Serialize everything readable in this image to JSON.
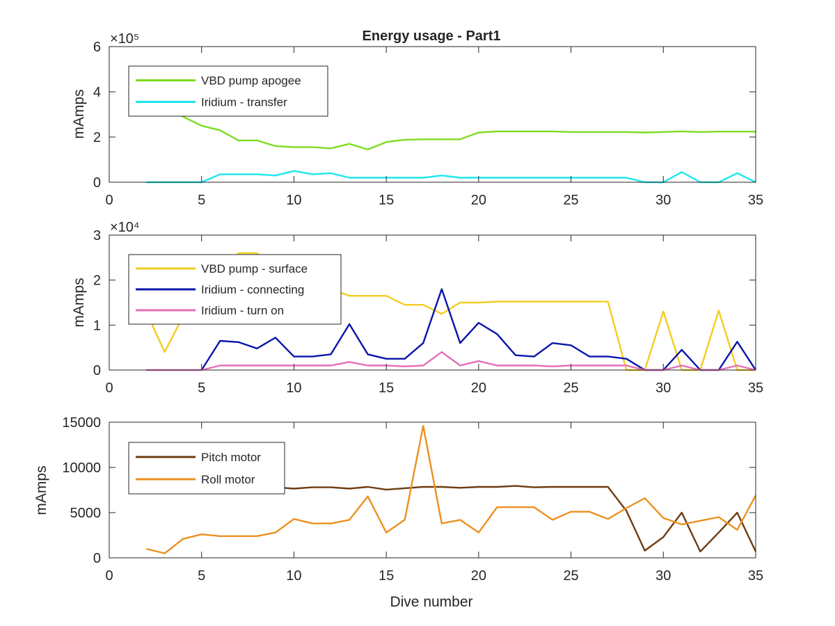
{
  "chart_data": [
    {
      "type": "line",
      "title": "Energy usage - Part1",
      "xlabel": "",
      "ylabel": "mAmps",
      "exponent_label": "×10⁵",
      "xlim": [
        0,
        35
      ],
      "ylim": [
        0,
        600000
      ],
      "xticks": [
        0,
        5,
        10,
        15,
        20,
        25,
        30,
        35
      ],
      "yticks": [
        0,
        200000,
        400000,
        600000
      ],
      "ytick_labels": [
        "0",
        "2",
        "4",
        "6"
      ],
      "grid": false,
      "legend": "top-left",
      "series": [
        {
          "name": "VBD pump apogee",
          "color": "#7ddc1f",
          "x": [
            2,
            3,
            4,
            5,
            6,
            7,
            8,
            9,
            10,
            11,
            12,
            13,
            14,
            15,
            16,
            17,
            18,
            19,
            20,
            21,
            22,
            23,
            24,
            25,
            26,
            27,
            28,
            29,
            30,
            31,
            32,
            33,
            34,
            35
          ],
          "y": [
            420000,
            340000,
            290000,
            250000,
            230000,
            185000,
            185000,
            160000,
            155000,
            155000,
            150000,
            170000,
            145000,
            178000,
            188000,
            190000,
            190000,
            190000,
            220000,
            225000,
            225000,
            225000,
            225000,
            222000,
            222000,
            222000,
            222000,
            220000,
            222000,
            225000,
            222000,
            224000,
            224000,
            224000
          ]
        },
        {
          "name": "Iridium - transfer",
          "color": "#1ee6ee",
          "x": [
            2,
            3,
            4,
            5,
            6,
            7,
            8,
            9,
            10,
            11,
            12,
            13,
            14,
            15,
            16,
            17,
            18,
            19,
            20,
            21,
            22,
            23,
            24,
            25,
            26,
            27,
            28,
            29,
            30,
            31,
            32,
            33,
            34,
            35
          ],
          "y": [
            0,
            0,
            0,
            0,
            35000,
            35000,
            35000,
            30000,
            50000,
            35000,
            40000,
            20000,
            20000,
            20000,
            20000,
            20000,
            30000,
            20000,
            20000,
            20000,
            20000,
            20000,
            20000,
            20000,
            20000,
            20000,
            20000,
            0,
            0,
            45000,
            0,
            0,
            40000,
            0
          ]
        }
      ]
    },
    {
      "type": "line",
      "title": "",
      "xlabel": "",
      "ylabel": "mAmps",
      "exponent_label": "×10⁴",
      "xlim": [
        0,
        35
      ],
      "ylim": [
        0,
        30000
      ],
      "xticks": [
        0,
        5,
        10,
        15,
        20,
        25,
        30,
        35
      ],
      "yticks": [
        0,
        10000,
        20000,
        30000
      ],
      "ytick_labels": [
        "0",
        "1",
        "2",
        "3"
      ],
      "grid": false,
      "legend": "top-left",
      "series": [
        {
          "name": "VBD pump - surface",
          "color": "#f2cd1f",
          "x": [
            2,
            3,
            4,
            5,
            6,
            7,
            8,
            9,
            10,
            11,
            12,
            13,
            14,
            15,
            16,
            17,
            18,
            19,
            20,
            21,
            22,
            23,
            24,
            25,
            26,
            27,
            28,
            29,
            30,
            31,
            32,
            33,
            34,
            35
          ],
          "y": [
            13000,
            4000,
            12000,
            18000,
            22000,
            26000,
            26000,
            21000,
            21000,
            19000,
            18000,
            16500,
            16500,
            16500,
            14500,
            14500,
            12500,
            15000,
            15000,
            15200,
            15200,
            15200,
            15200,
            15200,
            15200,
            15200,
            0,
            0,
            13000,
            0,
            0,
            13200,
            0,
            0
          ]
        },
        {
          "name": "Iridium - connecting",
          "color": "#0a14aa",
          "x": [
            5,
            6,
            7,
            8,
            9,
            10,
            11,
            12,
            13,
            14,
            15,
            16,
            17,
            18,
            19,
            20,
            21,
            22,
            23,
            24,
            25,
            26,
            27,
            28,
            29,
            30,
            31,
            32,
            33,
            34,
            35
          ],
          "y": [
            0,
            6500,
            6200,
            4800,
            7200,
            3000,
            3000,
            3500,
            10200,
            3500,
            2500,
            2500,
            6000,
            18000,
            6000,
            10500,
            8000,
            3300,
            3000,
            6000,
            5500,
            3000,
            3000,
            2500,
            0,
            0,
            4500,
            0,
            0,
            6300,
            0
          ]
        },
        {
          "name": "Iridium - turn on",
          "color": "#e46fb6",
          "x": [
            2,
            3,
            4,
            5,
            6,
            7,
            8,
            9,
            10,
            11,
            12,
            13,
            14,
            15,
            16,
            17,
            18,
            19,
            20,
            21,
            22,
            23,
            24,
            25,
            26,
            27,
            28,
            29,
            30,
            31,
            32,
            33,
            34,
            35
          ],
          "y": [
            0,
            0,
            0,
            0,
            1000,
            1000,
            1000,
            1000,
            1000,
            1000,
            1000,
            1800,
            1000,
            1000,
            800,
            1000,
            4000,
            1000,
            2000,
            1000,
            1000,
            1000,
            800,
            1000,
            1000,
            1000,
            1000,
            0,
            0,
            1000,
            0,
            0,
            1000,
            0
          ]
        }
      ]
    },
    {
      "type": "line",
      "title": "",
      "xlabel": "Dive number",
      "ylabel": "mAmps",
      "exponent_label": "",
      "xlim": [
        0,
        35
      ],
      "ylim": [
        0,
        15000
      ],
      "xticks": [
        0,
        5,
        10,
        15,
        20,
        25,
        30,
        35
      ],
      "yticks": [
        0,
        5000,
        10000,
        15000
      ],
      "ytick_labels": [
        "0",
        "5000",
        "10000",
        "15000"
      ],
      "grid": false,
      "legend": "top-left",
      "series": [
        {
          "name": "Pitch motor",
          "color": "#6e3c12",
          "x": [
            2,
            3,
            4,
            5,
            6,
            7,
            8,
            9,
            10,
            11,
            12,
            13,
            14,
            15,
            16,
            17,
            18,
            19,
            20,
            21,
            22,
            23,
            24,
            25,
            26,
            27,
            28,
            29,
            30,
            31,
            32,
            33,
            34,
            35
          ],
          "y": [
            8100,
            8000,
            7900,
            7800,
            7800,
            7800,
            7800,
            7800,
            7650,
            7800,
            7800,
            7650,
            7850,
            7550,
            7700,
            7850,
            7850,
            7750,
            7850,
            7850,
            7950,
            7800,
            7850,
            7850,
            7850,
            7850,
            5200,
            800,
            2300,
            5000,
            700,
            2800,
            5000,
            700
          ]
        },
        {
          "name": "Roll motor",
          "color": "#ec9020",
          "x": [
            2,
            3,
            4,
            5,
            6,
            7,
            8,
            9,
            10,
            11,
            12,
            13,
            14,
            15,
            16,
            17,
            18,
            19,
            20,
            21,
            22,
            23,
            24,
            25,
            26,
            27,
            28,
            29,
            30,
            31,
            32,
            33,
            34,
            35
          ],
          "y": [
            1000,
            500,
            2100,
            2600,
            2400,
            2400,
            2400,
            2800,
            4300,
            3800,
            3800,
            4200,
            6800,
            2800,
            4200,
            14600,
            3800,
            4200,
            2800,
            5600,
            5600,
            5600,
            4200,
            5100,
            5100,
            4300,
            5500,
            6600,
            4400,
            3700,
            4100,
            4500,
            3100,
            6900
          ]
        }
      ]
    }
  ]
}
